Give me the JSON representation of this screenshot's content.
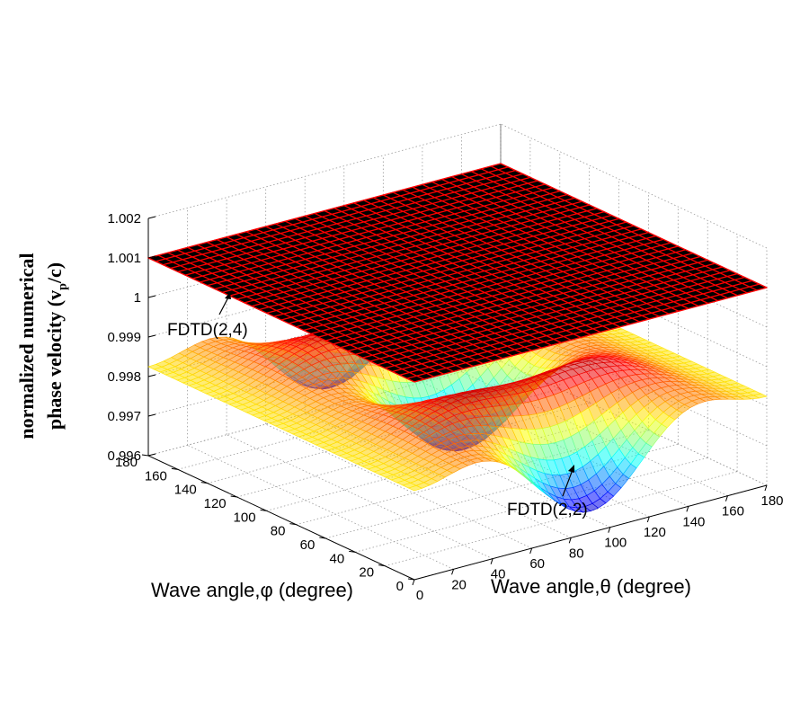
{
  "chart_data": {
    "type": "surface",
    "x_axis": {
      "label": "Wave angle,θ (degree)",
      "range": [
        0,
        180
      ],
      "ticks": [
        "0",
        "20",
        "40",
        "60",
        "80",
        "100",
        "120",
        "140",
        "160",
        "180"
      ]
    },
    "y_axis": {
      "label": "Wave angle,φ (degree)",
      "range": [
        0,
        180
      ],
      "ticks": [
        "0",
        "20",
        "40",
        "60",
        "80",
        "100",
        "120",
        "140",
        "160",
        "180"
      ]
    },
    "z_axis": {
      "label_line1": "normalized numerical",
      "label_line2": "phase velocity (v",
      "label_sub": "p",
      "label_tail": "/c)",
      "range": [
        0.996,
        1.002
      ],
      "ticks": [
        "0.996",
        "0.997",
        "0.998",
        "0.999",
        "1",
        "1.001",
        "1.002"
      ]
    },
    "grid": true,
    "series": [
      {
        "name": "FDTD(2,4)",
        "surface": "flat plane",
        "z_value": 1.001,
        "colors": [
          "#000000",
          "#ff0000"
        ]
      },
      {
        "name": "FDTD(2,2)",
        "surface": "undulating wireframe",
        "z_min": 0.9963,
        "z_max": 0.9993,
        "colormap": "jet"
      }
    ],
    "annotations": [
      {
        "text": "FDTD(2,4)",
        "points_to": "FDTD(2,4) plane"
      },
      {
        "text": "FDTD(2,2)",
        "points_to": "FDTD(2,2) surface minimum"
      }
    ]
  }
}
